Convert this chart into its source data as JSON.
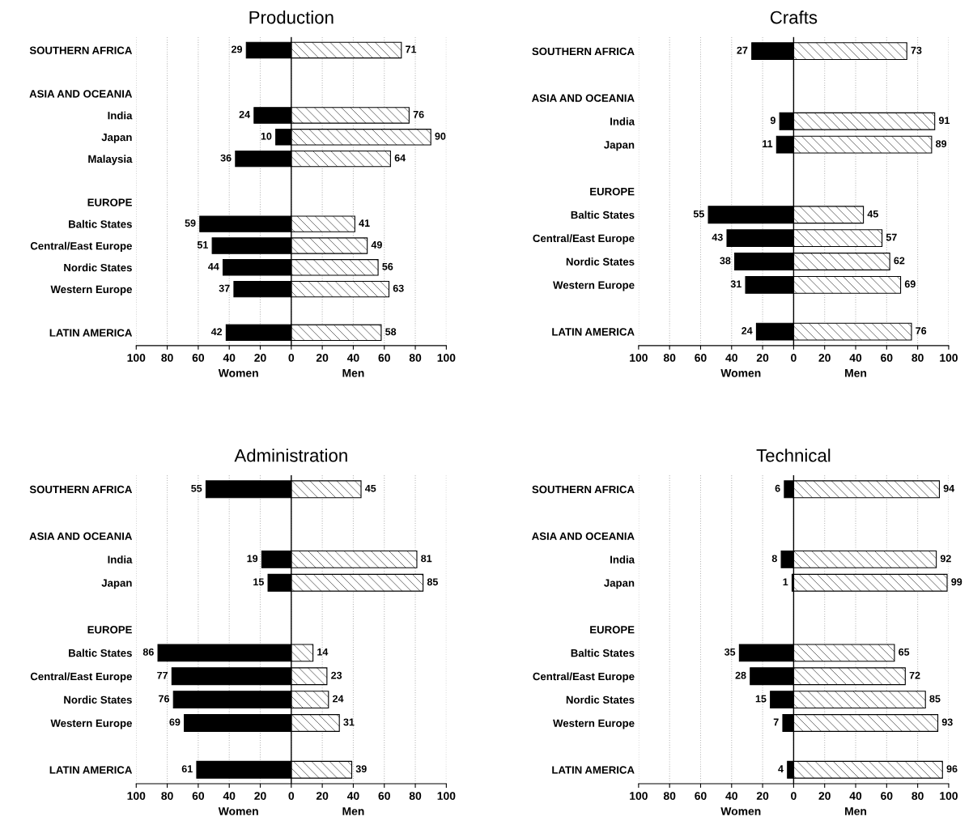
{
  "chart_data": [
    {
      "type": "bar",
      "orientation": "horizontal",
      "title": "Production",
      "categories": [
        "SOUTHERN AFRICA",
        null,
        "ASIA AND OCEANIA",
        "India",
        "Japan",
        "Malaysia",
        null,
        "EUROPE",
        "Baltic States",
        "Central/East Europe",
        "Nordic States",
        "Western Europe",
        null,
        "LATIN AMERICA"
      ],
      "series": [
        {
          "color": "#000000",
          "values": [
            29,
            null,
            null,
            24,
            10,
            36,
            null,
            null,
            59,
            51,
            44,
            37,
            null,
            42
          ],
          "base": [
            -29,
            null,
            null,
            -24,
            -10,
            -36,
            null,
            null,
            -59,
            -51,
            -44,
            -37,
            null,
            -42
          ]
        },
        {
          "color": "#ffffff",
          "values": [
            71,
            null,
            null,
            76,
            90,
            64,
            null,
            null,
            41,
            49,
            56,
            63,
            null,
            58
          ]
        }
      ],
      "data_labels": true,
      "xlim": [
        -100,
        100
      ],
      "xticks": [
        {
          "value": -100,
          "label": "100"
        },
        {
          "value": -80,
          "label": "80"
        },
        {
          "value": -60,
          "label": "60"
        },
        {
          "value": -40,
          "label": "40"
        },
        {
          "value": -20,
          "label": "20"
        },
        0,
        20,
        40,
        60,
        80,
        100
      ],
      "annotations": [
        "Women",
        "Men"
      ],
      "ref_lines": [
        {
          "axis": "x",
          "value": 0,
          "color": "#000000"
        }
      ],
      "grid": "x"
    },
    {
      "type": "bar",
      "orientation": "horizontal",
      "title": "Crafts",
      "categories": [
        "SOUTHERN AFRICA",
        null,
        "ASIA AND OCEANIA",
        "India",
        "Japan",
        null,
        "EUROPE",
        "Baltic States",
        "Central/East Europe",
        "Nordic States",
        "Western Europe",
        null,
        "LATIN AMERICA"
      ],
      "series": [
        {
          "color": "#000000",
          "values": [
            27,
            null,
            null,
            9,
            11,
            null,
            null,
            55,
            43,
            38,
            31,
            null,
            24
          ],
          "base": [
            -27,
            null,
            null,
            -9,
            -11,
            null,
            null,
            -55,
            -43,
            -38,
            -31,
            null,
            -24
          ]
        },
        {
          "color": "#ffffff",
          "values": [
            73,
            null,
            null,
            91,
            89,
            null,
            null,
            45,
            57,
            62,
            69,
            null,
            76
          ]
        }
      ],
      "data_labels": true,
      "xlim": [
        -100,
        100
      ],
      "xticks": [
        {
          "value": -100,
          "label": "100"
        },
        {
          "value": -80,
          "label": "80"
        },
        {
          "value": -60,
          "label": "60"
        },
        {
          "value": -40,
          "label": "40"
        },
        {
          "value": -20,
          "label": "20"
        },
        0,
        20,
        40,
        60,
        80,
        100
      ],
      "annotations": [
        "Women",
        "Men"
      ],
      "ref_lines": [
        {
          "axis": "x",
          "value": 0,
          "color": "#000000"
        }
      ],
      "grid": "x"
    },
    {
      "type": "bar",
      "orientation": "horizontal",
      "title": "Administration",
      "categories": [
        "SOUTHERN AFRICA",
        null,
        "ASIA AND OCEANIA",
        "India",
        "Japan",
        null,
        "EUROPE",
        "Baltic States",
        "Central/East Europe",
        "Nordic States",
        "Western Europe",
        null,
        "LATIN AMERICA"
      ],
      "series": [
        {
          "color": "#000000",
          "values": [
            55,
            null,
            null,
            19,
            15,
            null,
            null,
            86,
            77,
            76,
            69,
            null,
            61
          ],
          "base": [
            -55,
            null,
            null,
            -19,
            -15,
            null,
            null,
            -86,
            -77,
            -76,
            -69,
            null,
            -61
          ]
        },
        {
          "color": "#ffffff",
          "values": [
            45,
            null,
            null,
            81,
            85,
            null,
            null,
            14,
            23,
            24,
            31,
            null,
            39
          ]
        }
      ],
      "data_labels": true,
      "xlim": [
        -100,
        100
      ],
      "xticks": [
        {
          "value": -100,
          "label": "100"
        },
        {
          "value": -80,
          "label": "80"
        },
        {
          "value": -60,
          "label": "60"
        },
        {
          "value": -40,
          "label": "40"
        },
        {
          "value": -20,
          "label": "20"
        },
        0,
        20,
        40,
        60,
        80,
        100
      ],
      "annotations": [
        "Women",
        "Men"
      ],
      "ref_lines": [
        {
          "axis": "x",
          "value": 0,
          "color": "#000000"
        }
      ],
      "grid": "x"
    },
    {
      "type": "bar",
      "orientation": "horizontal",
      "title": "Technical",
      "categories": [
        "SOUTHERN AFRICA",
        null,
        "ASIA AND OCEANIA",
        "India",
        "Japan",
        null,
        "EUROPE",
        "Baltic States",
        "Central/East Europe",
        "Nordic States",
        "Western Europe",
        null,
        "LATIN AMERICA"
      ],
      "series": [
        {
          "color": "#000000",
          "values": [
            6,
            null,
            null,
            8,
            1,
            null,
            null,
            35,
            28,
            15,
            7,
            null,
            4
          ],
          "base": [
            -6,
            null,
            null,
            -8,
            -1,
            null,
            null,
            -35,
            -28,
            -15,
            -7,
            null,
            -4
          ]
        },
        {
          "color": "#ffffff",
          "values": [
            94,
            null,
            null,
            92,
            99,
            null,
            null,
            65,
            72,
            85,
            93,
            null,
            96
          ]
        }
      ],
      "data_labels": true,
      "xlim": [
        -100,
        100
      ],
      "xticks": [
        {
          "value": -100,
          "label": "100"
        },
        {
          "value": -80,
          "label": "80"
        },
        {
          "value": -60,
          "label": "60"
        },
        {
          "value": -40,
          "label": "40"
        },
        {
          "value": -20,
          "label": "20"
        },
        0,
        20,
        40,
        60,
        80,
        100
      ],
      "annotations": [
        "Women",
        "Men"
      ],
      "ref_lines": [
        {
          "axis": "x",
          "value": 0,
          "color": "#000000"
        }
      ],
      "grid": "x"
    }
  ]
}
